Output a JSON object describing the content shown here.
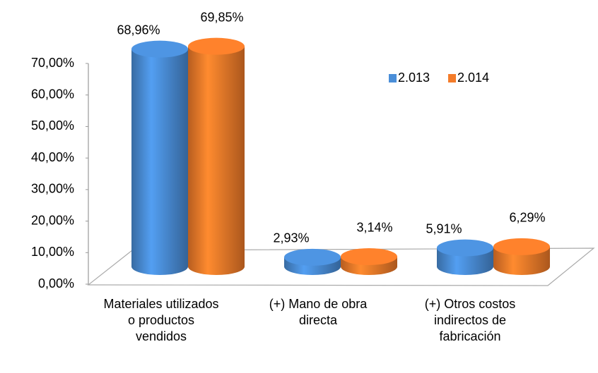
{
  "chart_data": {
    "type": "bar3d",
    "categories": [
      "Materiales utilizados o productos vendidos",
      "(+) Mano de obra directa",
      "(+) Otros costos indirectos de fabricación"
    ],
    "series": [
      {
        "name": "2.013",
        "color": "#4a8ed8",
        "values": [
          68.96,
          2.93,
          5.91
        ],
        "value_labels": [
          "68,96%",
          "2,93%",
          "5,91%"
        ]
      },
      {
        "name": "2.014",
        "color": "#f47c2a",
        "values": [
          69.85,
          3.14,
          6.29
        ],
        "value_labels": [
          "69,85%",
          "3,14%",
          "6,29%"
        ]
      }
    ],
    "ylim": [
      0,
      70
    ],
    "yticks": [
      {
        "value": 0,
        "label": "0,00%"
      },
      {
        "value": 10,
        "label": "10,00%"
      },
      {
        "value": 20,
        "label": "20,00%"
      },
      {
        "value": 30,
        "label": "30,00%"
      },
      {
        "value": 40,
        "label": "40,00%"
      },
      {
        "value": 50,
        "label": "50,00%"
      },
      {
        "value": 60,
        "label": "60,00%"
      },
      {
        "value": 70,
        "label": "70,00%"
      }
    ],
    "legend": "top-right"
  }
}
